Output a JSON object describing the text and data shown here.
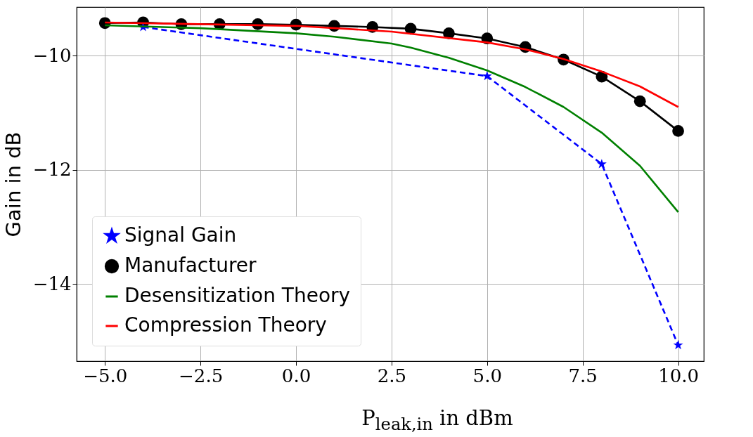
{
  "chart_data": {
    "type": "line",
    "xlabel": "P$_{leak,in}$ in dBm",
    "ylabel": "Gain in dB",
    "xlim": [
      -5.74,
      10.67
    ],
    "ylim": [
      -15.35,
      -9.15
    ],
    "xticks": [
      {
        "value": -5,
        "label": "−5.0"
      },
      {
        "value": -2.5,
        "label": "−2.5"
      },
      {
        "value": 0,
        "label": "0.0"
      },
      {
        "value": 2.5,
        "label": "2.5"
      },
      {
        "value": 5,
        "label": "5.0"
      },
      {
        "value": 7.5,
        "label": "7.5"
      },
      {
        "value": 10,
        "label": "10.0"
      }
    ],
    "yticks": [
      {
        "value": -10,
        "label": "−10"
      },
      {
        "value": -12,
        "label": "−12"
      },
      {
        "value": -14,
        "label": "−14"
      }
    ],
    "grid": true,
    "legend": "bottom left",
    "series": [
      {
        "name": "Signal Gain",
        "color": "#0000ff",
        "marker": "star",
        "line_style": "dashed",
        "x": [
          -4,
          5,
          8,
          10
        ],
        "values": [
          -9.5,
          -10.36,
          -11.9,
          -15.07
        ]
      },
      {
        "name": "Manufacturer",
        "color": "#000000",
        "marker": "circle",
        "line_style": "solid",
        "x": [
          -5,
          -4,
          -3,
          -2,
          -1,
          0,
          1,
          2,
          3,
          4,
          5,
          6,
          7,
          8,
          9,
          10
        ],
        "values": [
          -9.43,
          -9.42,
          -9.45,
          -9.45,
          -9.45,
          -9.46,
          -9.48,
          -9.5,
          -9.53,
          -9.61,
          -9.7,
          -9.85,
          -10.07,
          -10.37,
          -10.8,
          -11.32
        ]
      },
      {
        "name": "Desensitization Theory",
        "color": "#008000",
        "marker": "none",
        "line_style": "solid",
        "x": [
          -5,
          -2.5,
          0,
          1,
          2.5,
          3,
          4,
          5,
          6,
          7,
          8,
          9,
          10
        ],
        "values": [
          -9.47,
          -9.52,
          -9.61,
          -9.67,
          -9.79,
          -9.86,
          -10.04,
          -10.26,
          -10.55,
          -10.9,
          -11.35,
          -11.93,
          -12.74
        ]
      },
      {
        "name": "Compression Theory",
        "color": "#ff0000",
        "marker": "none",
        "line_style": "solid",
        "x": [
          -5,
          0,
          2.5,
          5,
          6,
          7,
          8,
          9,
          10
        ],
        "values": [
          -9.42,
          -9.48,
          -9.58,
          -9.77,
          -9.89,
          -10.06,
          -10.28,
          -10.54,
          -10.9
        ]
      }
    ]
  }
}
